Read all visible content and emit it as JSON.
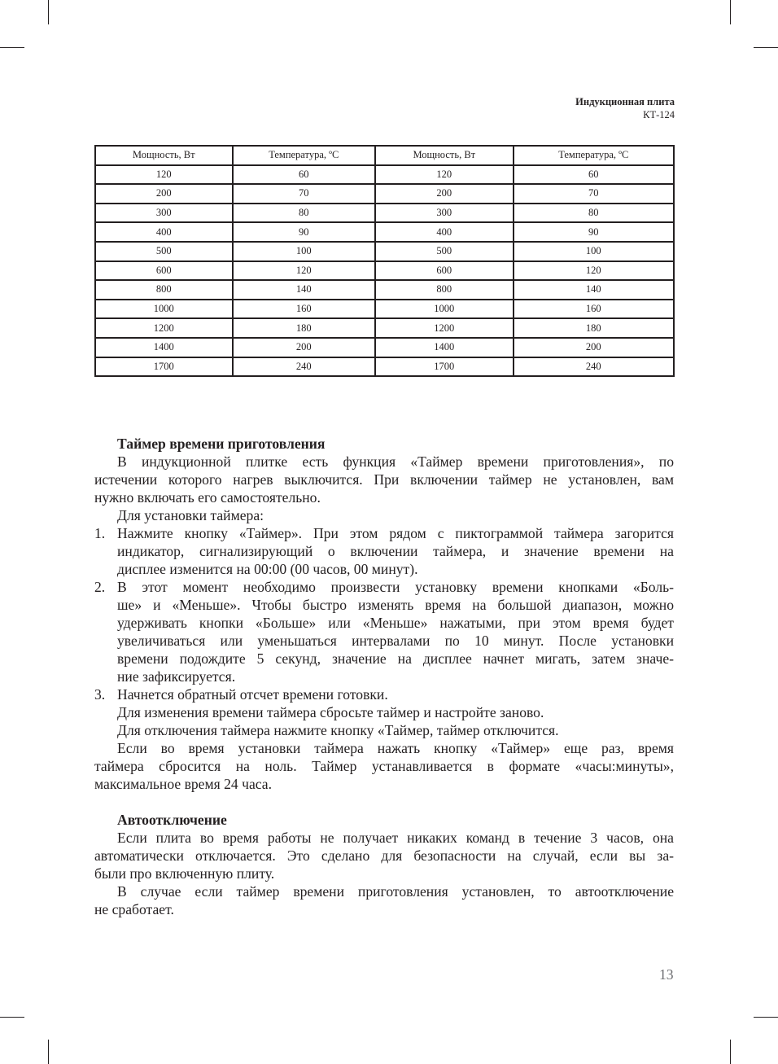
{
  "header": {
    "title": "Индукционная плита",
    "model": "КТ-124"
  },
  "table": {
    "headers": [
      "Мощность, Вт",
      "Температура, ºС",
      "Мощность, Вт",
      "Температура, ºС"
    ],
    "rows": [
      [
        "120",
        "60",
        "120",
        "60"
      ],
      [
        "200",
        "70",
        "200",
        "70"
      ],
      [
        "300",
        "80",
        "300",
        "80"
      ],
      [
        "400",
        "90",
        "400",
        "90"
      ],
      [
        "500",
        "100",
        "500",
        "100"
      ],
      [
        "600",
        "120",
        "600",
        "120"
      ],
      [
        "800",
        "140",
        "800",
        "140"
      ],
      [
        "1000",
        "160",
        "1000",
        "160"
      ],
      [
        "1200",
        "180",
        "1200",
        "180"
      ],
      [
        "1400",
        "200",
        "1400",
        "200"
      ],
      [
        "1700",
        "240",
        "1700",
        "240"
      ]
    ]
  },
  "blocks": [
    {
      "kind": "title",
      "lines": [
        "Таймер времени приготовления"
      ]
    },
    {
      "kind": "para",
      "lines": [
        "В индукционной плитке есть функция «Таймер времени приготовления», по",
        "истечении которого нагрев выключится. При включении таймер не установлен, вам",
        "нужно включать его самостоятельно."
      ]
    },
    {
      "kind": "para",
      "lines": [
        "Для установки таймера:"
      ]
    },
    {
      "kind": "item",
      "num": "1.",
      "lines": [
        "Нажмите кнопку «Таймер». При этом рядом с пиктограммой таймера загорится",
        "индикатор, сигнализирующий о включении таймера, и значение времени на",
        "дисплее изменится на 00:00 (00 часов, 00 минут)."
      ]
    },
    {
      "kind": "item",
      "num": "2.",
      "lines": [
        "В этот момент необходимо произвести установку времени кнопками «Боль-",
        "ше» и «Меньше». Чтобы быстро изменять время на большой диапазон, можно",
        "удерживать кнопки «Больше» или «Меньше» нажатыми, при этом время будет",
        "увеличиваться или уменьшаться интервалами по 10 минут. После установки",
        "времени подождите 5 секунд, значение на дисплее начнет мигать, затем значе-",
        "ние зафиксируется."
      ]
    },
    {
      "kind": "item",
      "num": "3.",
      "lines": [
        "Начнется обратный отсчет времени готовки."
      ]
    },
    {
      "kind": "para",
      "lines": [
        "Для изменения времени таймера сбросьте таймер и настройте заново."
      ]
    },
    {
      "kind": "para",
      "lines": [
        "Для отключения таймера нажмите кнопку «Таймер, таймер отключится."
      ]
    },
    {
      "kind": "para",
      "lines": [
        "Если во время установки таймера нажать кнопку «Таймер» еще раз, время",
        "таймера сбросится на ноль. Таймер устанавливается в формате «часы:минуты»,",
        "максимальное время 24 часа."
      ]
    },
    {
      "kind": "gap",
      "lines": []
    },
    {
      "kind": "title",
      "lines": [
        "Автоотключение"
      ]
    },
    {
      "kind": "para",
      "lines": [
        "Если плита во время работы не получает никаких команд в течение 3 часов, она",
        "автоматически отключается. Это сделано для безопасности на случай, если вы за-",
        "были про включенную плиту."
      ]
    },
    {
      "kind": "para",
      "lines": [
        "В случае если таймер времени приготовления установлен, то автоотключение",
        "не сработает."
      ]
    }
  ],
  "page_number": "13"
}
